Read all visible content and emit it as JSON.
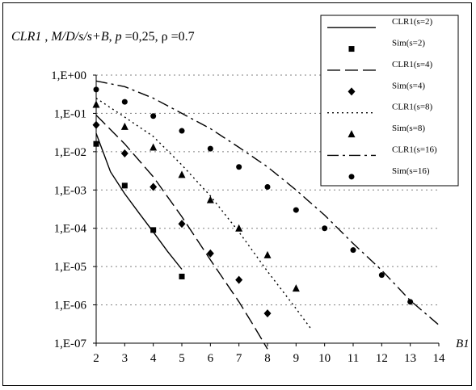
{
  "chart_data": {
    "type": "line",
    "title_parts": {
      "a": "CLR1",
      "b": " , ",
      "c": "M/D/s/s+B",
      "d": ", ",
      "e": "p",
      "f": " =0,25,  ",
      "g": "ρ",
      "h": " =0.7"
    },
    "xlabel": "B1",
    "ylabel": "",
    "xlim": [
      2,
      14
    ],
    "ylim_log10": [
      -7,
      0
    ],
    "y_scale": "log",
    "x_ticks": [
      "2",
      "3",
      "4",
      "5",
      "6",
      "7",
      "8",
      "9",
      "10",
      "11",
      "12",
      "13",
      "14"
    ],
    "y_ticks": [
      "1,E-07",
      "1,E-06",
      "1,E-05",
      "1,E-04",
      "1,E-03",
      "1,E-02",
      "1,E-01",
      "1,E+00"
    ],
    "grid": "horizontal-dotted",
    "legend_position": "right",
    "series": [
      {
        "name": "CLR1(s=2)",
        "kind": "line",
        "dash": "solid",
        "x": [
          2,
          2.5,
          3,
          3.5,
          4,
          4.5,
          5
        ],
        "y": [
          0.03,
          0.003,
          0.0008,
          0.00025,
          8e-05,
          2.5e-05,
          8.5e-06
        ]
      },
      {
        "name": "Sim(s=2)",
        "kind": "marker",
        "marker": "square",
        "x": [
          2,
          3,
          4,
          5
        ],
        "y": [
          0.016,
          0.0013,
          9e-05,
          5.5e-06
        ]
      },
      {
        "name": "CLR1(s=4)",
        "kind": "line",
        "dash": "long-dash",
        "x": [
          2,
          3,
          4,
          5,
          6,
          7,
          7.5,
          8
        ],
        "y": [
          0.09,
          0.016,
          0.0022,
          0.0002,
          1.5e-05,
          1.2e-06,
          3e-07,
          7e-08
        ]
      },
      {
        "name": "Sim(s=4)",
        "kind": "marker",
        "marker": "diamond",
        "x": [
          2,
          3,
          4,
          5,
          6,
          7,
          8
        ],
        "y": [
          0.05,
          0.009,
          0.0012,
          0.00013,
          2.2e-05,
          4.5e-06,
          6e-07
        ]
      },
      {
        "name": "CLR1(s=8)",
        "kind": "line",
        "dash": "dotted",
        "x": [
          2,
          3,
          4,
          5,
          6,
          7,
          8,
          9,
          9.5
        ],
        "y": [
          0.25,
          0.08,
          0.025,
          0.0045,
          0.0007,
          8e-05,
          7.5e-06,
          8e-07,
          2.5e-07
        ]
      },
      {
        "name": "Sim(s=8)",
        "kind": "marker",
        "marker": "triangle",
        "x": [
          2,
          3,
          4,
          5,
          6,
          7,
          8,
          9
        ],
        "y": [
          0.17,
          0.045,
          0.013,
          0.0025,
          0.00055,
          0.0001,
          2e-05,
          2.7e-06
        ]
      },
      {
        "name": "CLR1(s=16)",
        "kind": "line",
        "dash": "dash-dot",
        "x": [
          2,
          3,
          4,
          5,
          6,
          7,
          8,
          9,
          10,
          11,
          12,
          13,
          14
        ],
        "y": [
          0.7,
          0.5,
          0.25,
          0.1,
          0.04,
          0.013,
          0.004,
          0.001,
          0.00022,
          4e-05,
          8e-06,
          1.3e-06,
          3e-07
        ]
      },
      {
        "name": "Sim(s=16)",
        "kind": "marker",
        "marker": "circle",
        "x": [
          2,
          3,
          4,
          5,
          6,
          7,
          8,
          9,
          10,
          11,
          12,
          13
        ],
        "y": [
          0.42,
          0.2,
          0.085,
          0.035,
          0.012,
          0.004,
          0.0012,
          0.0003,
          0.0001,
          2.7e-05,
          6e-06,
          1.2e-06
        ]
      }
    ]
  }
}
